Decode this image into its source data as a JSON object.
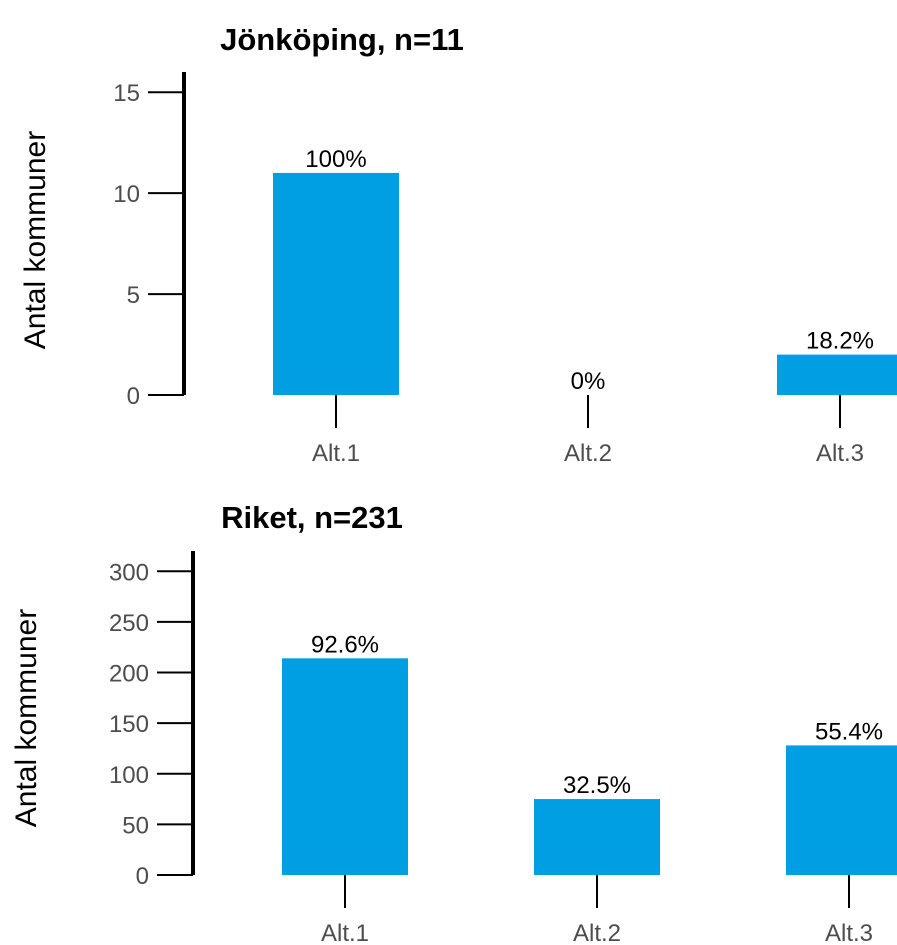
{
  "chart_data": [
    {
      "type": "bar",
      "title": "Jönköping, n=11",
      "ylabel": "Antal kommuner",
      "xlabel": "",
      "categories": [
        "Alt.1",
        "Alt.2",
        "Alt.3"
      ],
      "values": [
        11,
        0,
        2
      ],
      "data_labels": [
        "100%",
        "0%",
        "18.2%"
      ],
      "ylim": [
        0,
        16
      ],
      "yticks": [
        0,
        5,
        10,
        15
      ],
      "bar_color": "#009fe3",
      "grid": false
    },
    {
      "type": "bar",
      "title": "Riket, n=231",
      "ylabel": "Antal kommuner",
      "xlabel": "",
      "categories": [
        "Alt.1",
        "Alt.2",
        "Alt.3"
      ],
      "values": [
        214,
        75,
        128
      ],
      "data_labels": [
        "92.6%",
        "32.5%",
        "55.4%"
      ],
      "ylim": [
        0,
        320
      ],
      "yticks": [
        0,
        50,
        100,
        150,
        200,
        250,
        300
      ],
      "bar_color": "#009fe3",
      "grid": false
    }
  ]
}
